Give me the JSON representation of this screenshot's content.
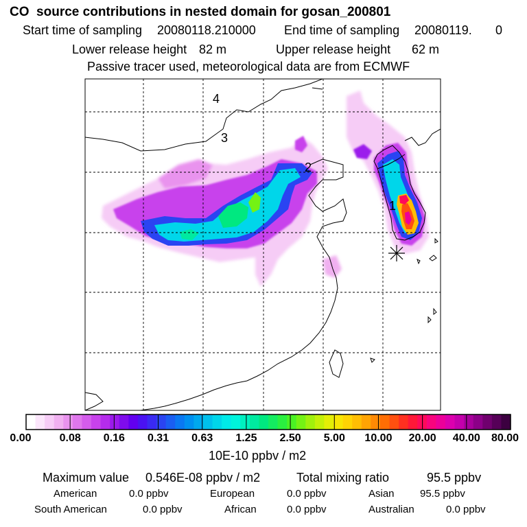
{
  "header": {
    "title": "CO  source contributions in nested domain for gosan_200801",
    "start_label": "Start time of sampling",
    "start_value": "20080118.210000",
    "end_label": "End time of sampling",
    "end_value": "20080119.",
    "end_hour": "0",
    "lower_label": "Lower release height",
    "lower_value": "82 m",
    "upper_label": "Upper release height",
    "upper_value": "62 m",
    "tracer_note": "Passive tracer used, meteorological data are from ECMWF"
  },
  "map": {
    "region_labels": [
      "1",
      "2",
      "3",
      "4"
    ],
    "receptor_symbol": "receptor-marker",
    "colors": {
      "coast": "#000000",
      "grid": "#000000",
      "background": "#ffffff"
    }
  },
  "colorbar": {
    "tick_labels": [
      "0.00",
      "0.08",
      "0.16",
      "0.31",
      "0.63",
      "1.25",
      "2.50",
      "5.00",
      "10.00",
      "20.00",
      "40.00",
      "80.00"
    ],
    "unit": "10E-10 ppbv / m2",
    "palette": [
      "#ffffff",
      "#fbe6fb",
      "#f6ccf6",
      "#f0b0f0",
      "#e993ee",
      "#df77ec",
      "#d45cec",
      "#c842ec",
      "#b52cec",
      "#9b1aec",
      "#7f0cec",
      "#6200f0",
      "#4a12f2",
      "#3a2af2",
      "#2a44f2",
      "#1a5ef2",
      "#0a78f2",
      "#0090f0",
      "#00a8ee",
      "#00c0ec",
      "#00d6ea",
      "#00eae8",
      "#00f4dc",
      "#00f0c0",
      "#00eaa0",
      "#00e880",
      "#14ec60",
      "#2af040",
      "#4af224",
      "#74f214",
      "#a0f00c",
      "#c4f008",
      "#e4ee06",
      "#f8e604",
      "#ffd404",
      "#ffbe04",
      "#ffa404",
      "#ff8a04",
      "#ff6e04",
      "#ff5010",
      "#ff3020",
      "#ff1838",
      "#ff0a5a",
      "#f8047e",
      "#ec009a",
      "#dc00ae",
      "#c400ac",
      "#a8009c",
      "#8c0088",
      "#70006e",
      "#560058",
      "#3c0040"
    ]
  },
  "stats": {
    "max_label": "Maximum value",
    "max_value": "0.546E-08 ppbv / m2",
    "total_label": "Total mixing ratio",
    "total_value": "95.5 ppbv",
    "regions": [
      {
        "name": "American",
        "value": "0.0 ppbv"
      },
      {
        "name": "European",
        "value": "0.0 ppbv"
      },
      {
        "name": "Asian",
        "value": "95.5 ppbv"
      },
      {
        "name": "South American",
        "value": "0.0 ppbv"
      },
      {
        "name": "African",
        "value": "0.0 ppbv"
      },
      {
        "name": "Australian",
        "value": "0.0 ppbv"
      }
    ]
  }
}
